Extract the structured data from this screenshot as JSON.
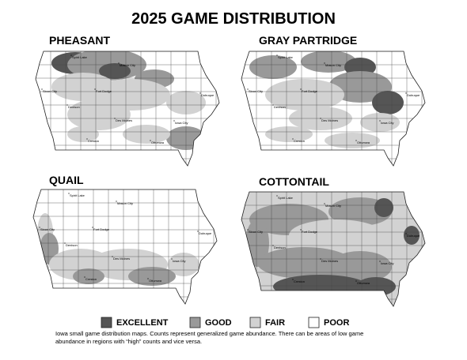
{
  "title": "2025 GAME DISTRIBUTION",
  "maps": [
    {
      "label": "PHEASANT"
    },
    {
      "label": "GRAY PARTRIDGE"
    },
    {
      "label": "QUAIL"
    },
    {
      "label": "COTTONTAIL"
    }
  ],
  "cities": [
    "Spirit Lake",
    "Mason City",
    "Sioux City",
    "Fort Dodge",
    "Dubuque",
    "Denison",
    "Des Moines",
    "Iowa City",
    "Creston",
    "Ottumwa"
  ],
  "legend": [
    {
      "label": "EXCELLENT",
      "color": "#555555"
    },
    {
      "label": "GOOD",
      "color": "#999999"
    },
    {
      "label": "FAIR",
      "color": "#d2d2d2"
    },
    {
      "label": "POOR",
      "color": "#ffffff"
    }
  ],
  "caption": [
    "Iowa small game distribution maps. Counts represent generalized game abundance.  There can be areas of low game",
    "abundance in regions with “high” counts and vice versa."
  ]
}
